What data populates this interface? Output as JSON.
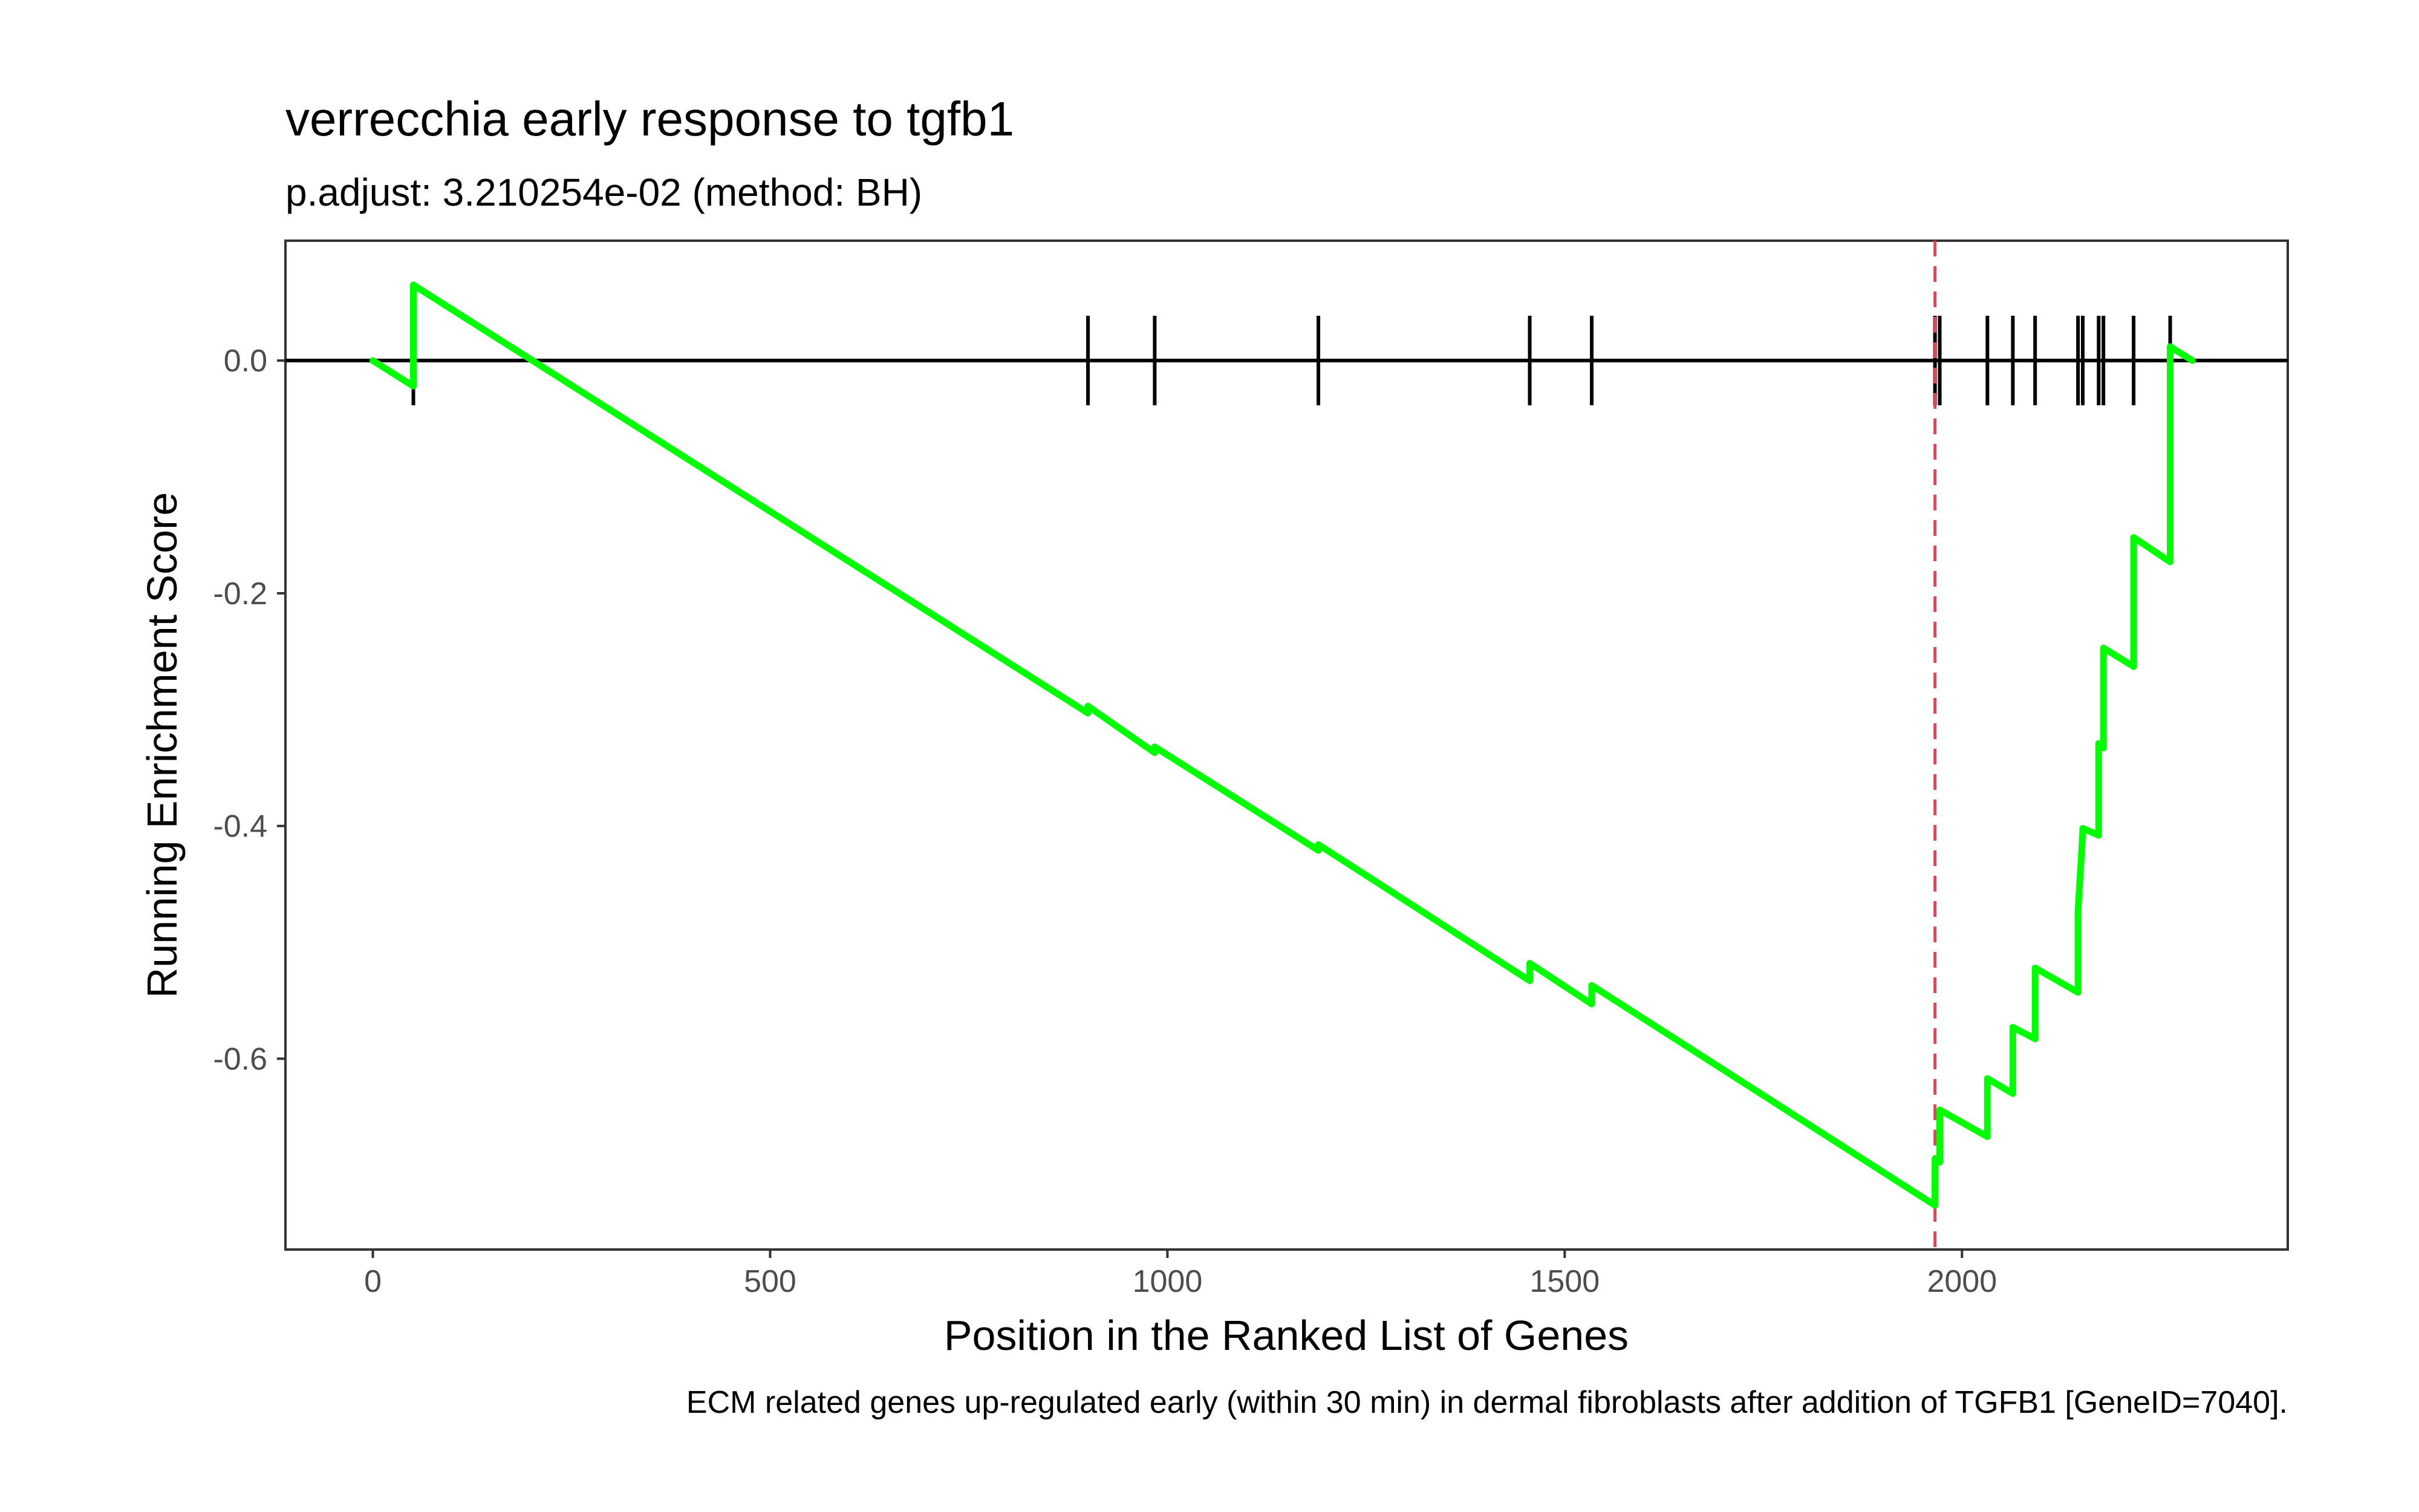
{
  "chart_data": {
    "type": "line",
    "title": "verrecchia early response to tgfb1",
    "subtitle": "p.adjust: 3.210254e-02 (method: BH)",
    "xlabel": "Position in the Ranked List of Genes",
    "ylabel": "Running Enrichment Score",
    "caption": "ECM related genes up-regulated early (within 30 min) in dermal fibroblasts after addition of TGFB1 [GeneID=7040].",
    "xlim": [
      -110,
      2410
    ],
    "ylim": [
      -0.764,
      0.103
    ],
    "x_ticks": [
      0,
      500,
      1000,
      1500,
      2000
    ],
    "x_tick_labels": [
      "0",
      "500",
      "1000",
      "1500",
      "2000"
    ],
    "y_ticks": [
      0.0,
      -0.2,
      -0.4,
      -0.6
    ],
    "y_tick_labels": [
      "0.0",
      "-0.2",
      "-0.4",
      "-0.6"
    ],
    "grid": false,
    "zero_line": 0.0,
    "peak_position": 1966,
    "colors": {
      "series": "#00ff00",
      "hits": "#000000",
      "peak_line": "#ee4055",
      "zero_line": "#000000",
      "panel_border": "#333333"
    },
    "series": [
      {
        "x": [
          0,
          51,
          51,
          900,
          900,
          984,
          984,
          1190,
          1190,
          1456,
          1456,
          1534,
          1534,
          1966,
          1966,
          1972,
          1972,
          2032,
          2032,
          2064,
          2064,
          2092,
          2092,
          2146,
          2146,
          2152,
          2152,
          2172,
          2172,
          2178,
          2178,
          2216,
          2216,
          2262,
          2262,
          2290
        ],
        "y": [
          0.0,
          -0.022,
          0.065,
          -0.303,
          -0.297,
          -0.337,
          -0.332,
          -0.421,
          -0.416,
          -0.533,
          -0.518,
          -0.553,
          -0.537,
          -0.726,
          -0.686,
          -0.689,
          -0.644,
          -0.667,
          -0.617,
          -0.63,
          -0.573,
          -0.583,
          -0.522,
          -0.543,
          -0.474,
          -0.405,
          -0.402,
          -0.408,
          -0.329,
          -0.333,
          -0.247,
          -0.263,
          -0.152,
          -0.173,
          0.012,
          0.0
        ]
      }
    ],
    "hits": [
      51,
      900,
      984,
      1190,
      1456,
      1534,
      1966,
      1972,
      2032,
      2064,
      2092,
      2146,
      2152,
      2172,
      2178,
      2216,
      2262
    ]
  }
}
